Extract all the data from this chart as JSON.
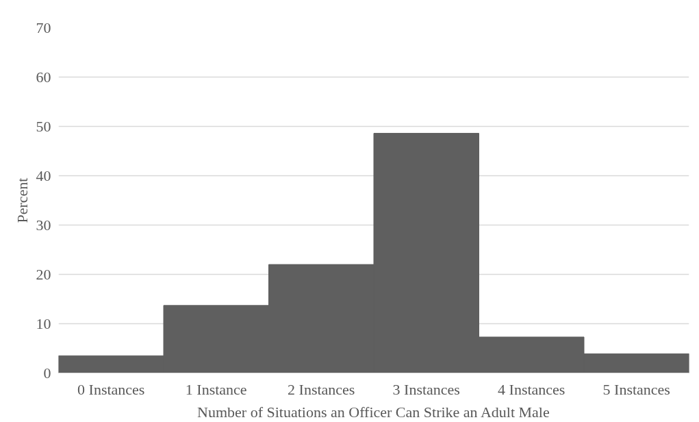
{
  "chart_data": {
    "type": "bar",
    "xlabel": "Number of Situations an Officer Can Strike an Adult Male",
    "ylabel": "Percent",
    "categories": [
      "0 Instances",
      "1 Instance",
      "2 Instances",
      "3 Instances",
      "4 Instances",
      "5 Instances"
    ],
    "values": [
      3.5,
      13.7,
      22.0,
      48.6,
      7.3,
      3.9
    ],
    "color": "#5f5f5f",
    "ylim": [
      0,
      70
    ],
    "yticks": [
      0,
      10,
      20,
      30,
      40,
      50,
      60,
      70
    ],
    "grid": "y"
  }
}
